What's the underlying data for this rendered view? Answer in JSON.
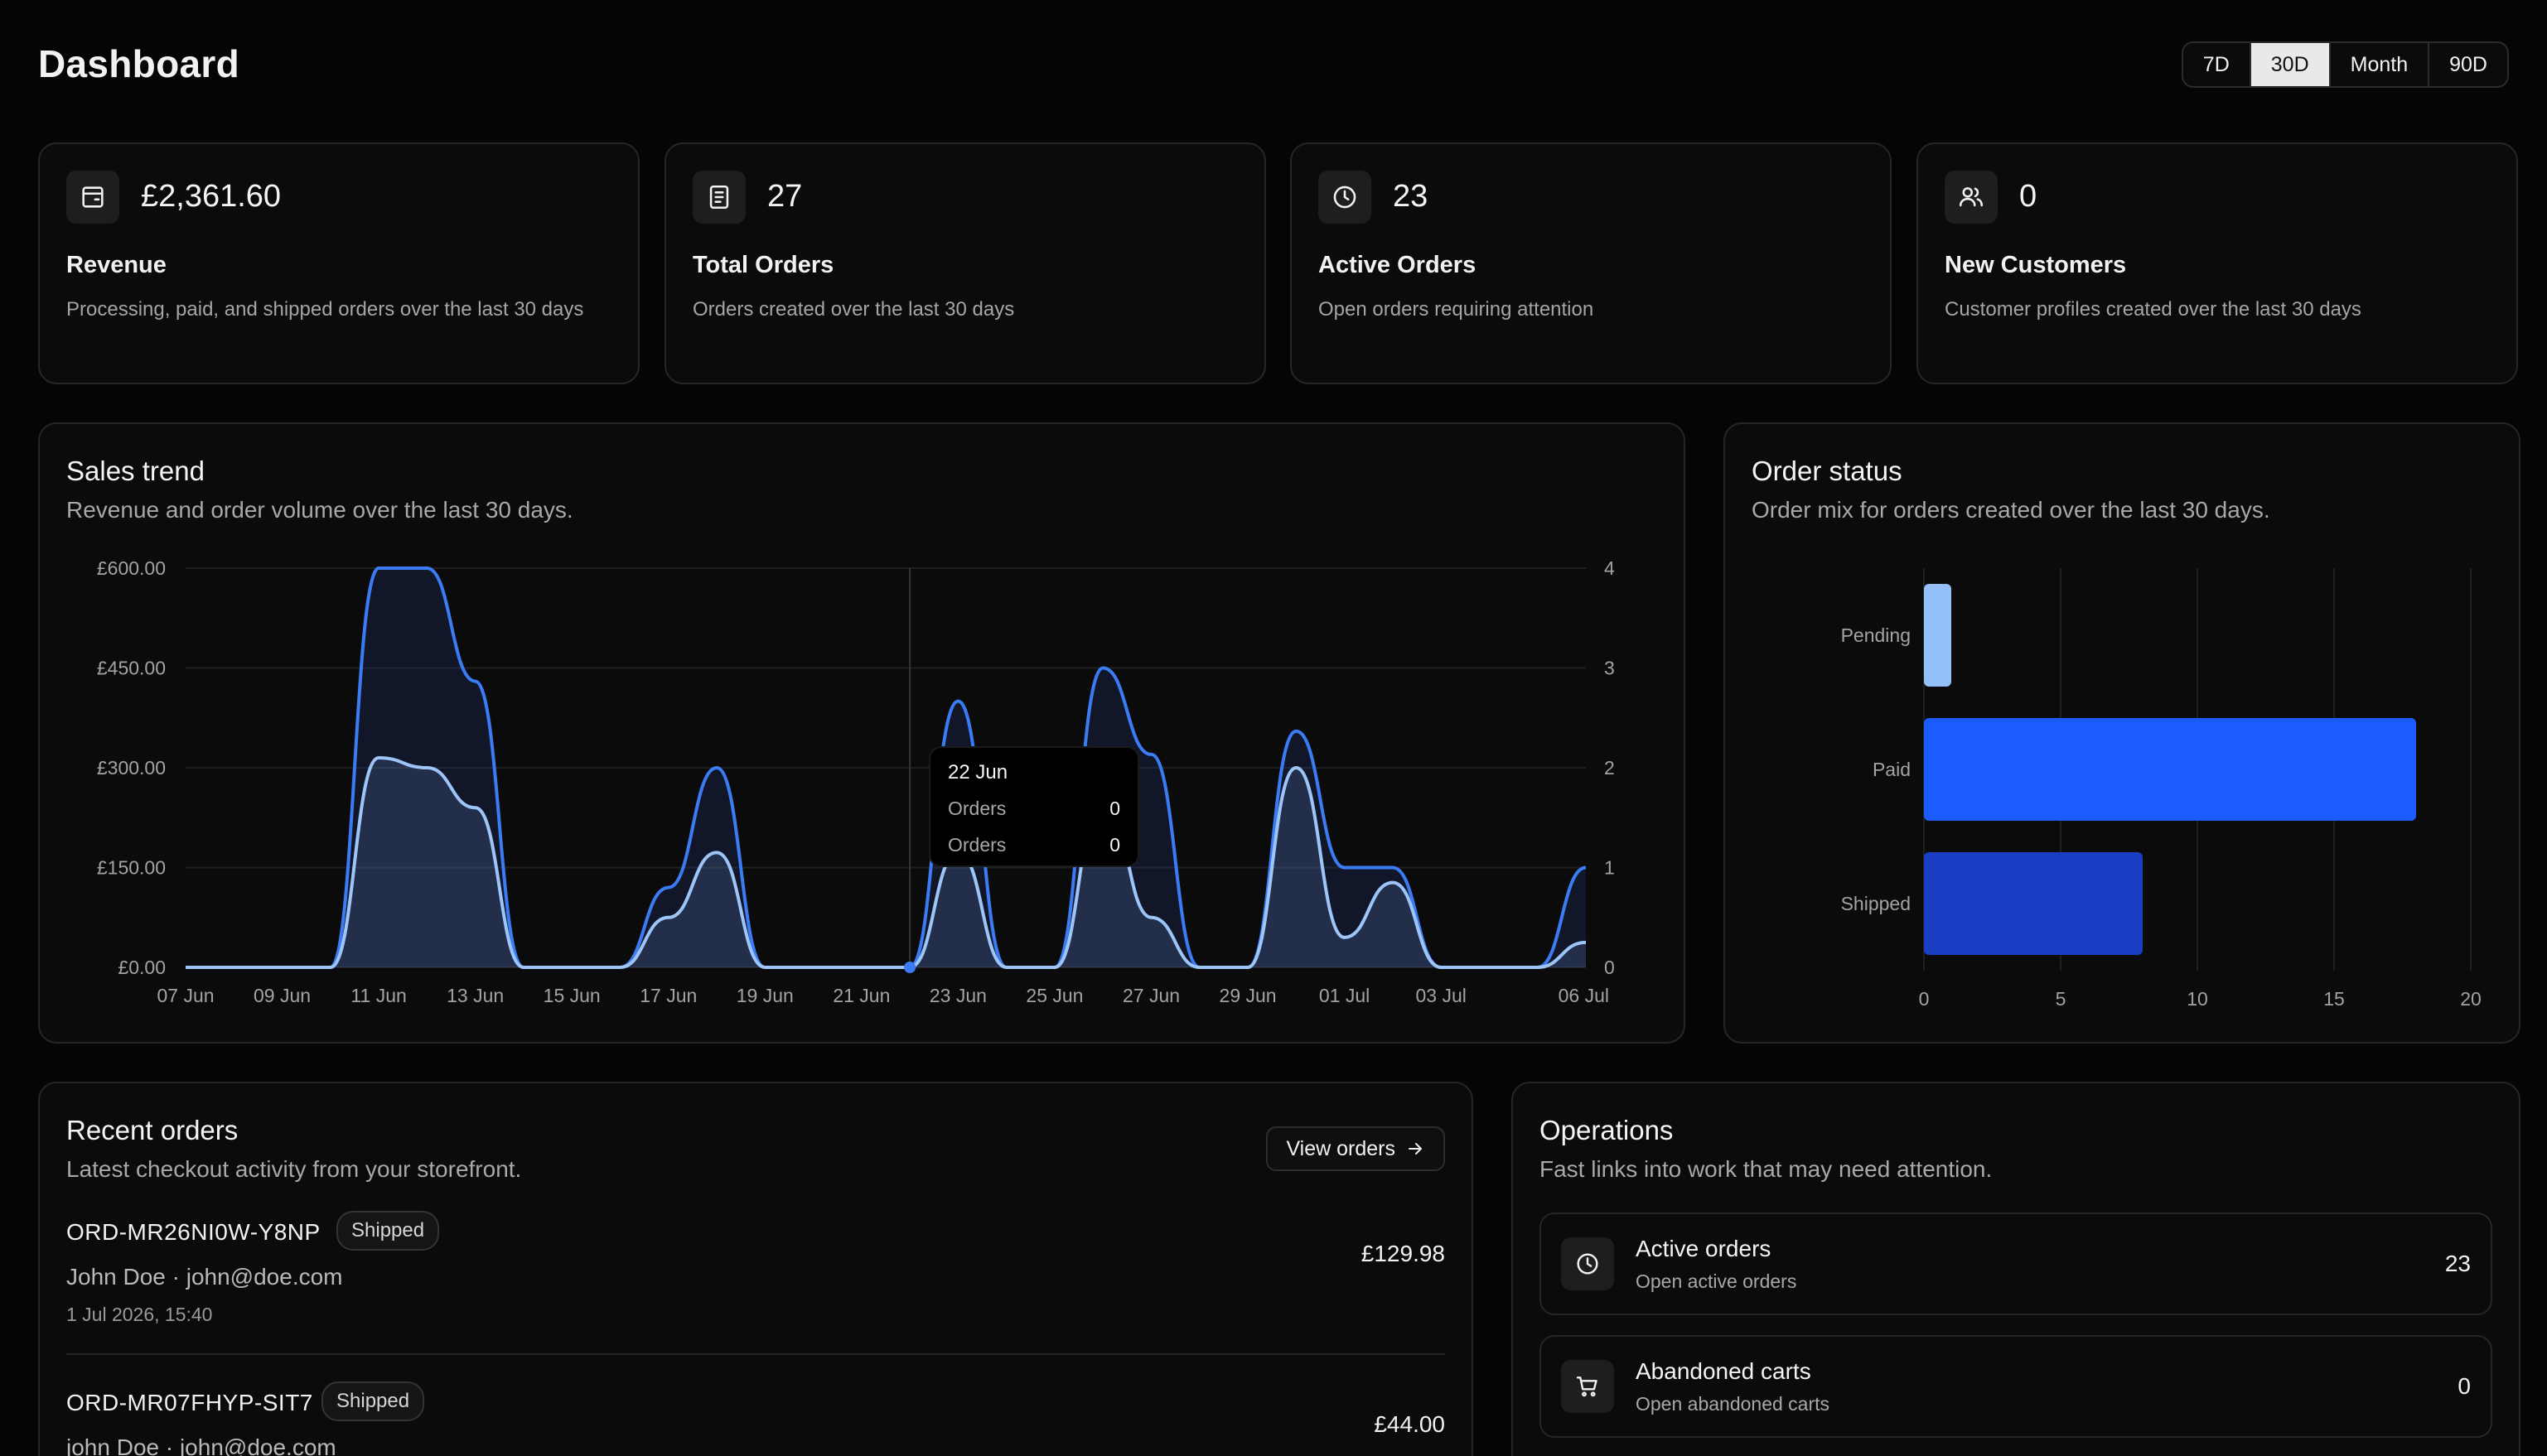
{
  "page": {
    "title": "Dashboard"
  },
  "range_options": [
    "7D",
    "30D",
    "Month",
    "90D"
  ],
  "range_selected": "30D",
  "stats": [
    {
      "icon": "wallet-icon",
      "value": "£2,361.60",
      "label": "Revenue",
      "desc": "Processing, paid, and shipped orders over the last 30 days"
    },
    {
      "icon": "receipt-icon",
      "value": "27",
      "label": "Total Orders",
      "desc": "Orders created over the last 30 days"
    },
    {
      "icon": "clock-icon",
      "value": "23",
      "label": "Active Orders",
      "desc": "Open orders requiring attention"
    },
    {
      "icon": "users-icon",
      "value": "0",
      "label": "New Customers",
      "desc": "Customer profiles created over the last 30 days"
    }
  ],
  "sales_trend": {
    "title": "Sales trend",
    "subtitle": "Revenue and order volume over the last 30 days.",
    "tooltip": {
      "date": "22 Jun",
      "rows": [
        {
          "label": "Orders",
          "value": "0"
        },
        {
          "label": "Orders",
          "value": "0"
        }
      ]
    }
  },
  "order_status": {
    "title": "Order status",
    "subtitle": "Order mix for orders created over the last 30 days."
  },
  "chart_data": [
    {
      "type": "area",
      "x_ticks": [
        "07 Jun",
        "09 Jun",
        "11 Jun",
        "13 Jun",
        "15 Jun",
        "17 Jun",
        "19 Jun",
        "21 Jun",
        "23 Jun",
        "25 Jun",
        "27 Jun",
        "29 Jun",
        "01 Jul",
        "03 Jul",
        "06 Jul"
      ],
      "y_left_ticks": [
        "£0.00",
        "£150.00",
        "£300.00",
        "£450.00",
        "£600.00"
      ],
      "y_left_lim": [
        0,
        600
      ],
      "y_right_ticks": [
        "0",
        "1",
        "2",
        "3",
        "4"
      ],
      "y_right_lim": [
        0,
        4
      ],
      "x": [
        "07 Jun",
        "08 Jun",
        "09 Jun",
        "10 Jun",
        "11 Jun",
        "12 Jun",
        "13 Jun",
        "14 Jun",
        "15 Jun",
        "16 Jun",
        "17 Jun",
        "18 Jun",
        "19 Jun",
        "20 Jun",
        "21 Jun",
        "22 Jun",
        "23 Jun",
        "24 Jun",
        "25 Jun",
        "26 Jun",
        "27 Jun",
        "28 Jun",
        "29 Jun",
        "30 Jun",
        "01 Jul",
        "02 Jul",
        "03 Jul",
        "04 Jul",
        "05 Jul",
        "06 Jul"
      ],
      "series": [
        {
          "axis": "left",
          "color": "#3b7cf5",
          "values": [
            0,
            0,
            0,
            0,
            600,
            600,
            430,
            0,
            0,
            0,
            120,
            300,
            0,
            0,
            0,
            0,
            400,
            0,
            0,
            450,
            320,
            0,
            0,
            355,
            150,
            150,
            0,
            0,
            0,
            150
          ]
        },
        {
          "axis": "right",
          "color": "#9dc5f8",
          "values": [
            0,
            0,
            0,
            0,
            2.1,
            2.0,
            1.6,
            0,
            0,
            0,
            0.5,
            1.15,
            0,
            0,
            0,
            0,
            1.15,
            0,
            0,
            1.7,
            0.5,
            0,
            0,
            2.0,
            0.3,
            0.85,
            0,
            0,
            0,
            0.25
          ]
        }
      ],
      "highlight": "22 Jun"
    },
    {
      "type": "bar",
      "orientation": "horizontal",
      "categories": [
        "Pending",
        "Paid",
        "Shipped"
      ],
      "values": [
        1,
        18,
        8
      ],
      "colors": [
        "#93c0f9",
        "#1a5cff",
        "#1a3fc4"
      ],
      "x_ticks": [
        "0",
        "5",
        "10",
        "15",
        "20"
      ],
      "xlim": [
        0,
        20
      ]
    }
  ],
  "recent_orders": {
    "title": "Recent orders",
    "subtitle": "Latest checkout activity from your storefront.",
    "view_label": "View orders",
    "orders": [
      {
        "id": "ORD-MR26NI0W-Y8NP",
        "status": "Shipped",
        "customer": "John Doe · john@doe.com",
        "time": "1 Jul 2026, 15:40",
        "amount": "£129.98"
      },
      {
        "id": "ORD-MR07FHYP-SIT7",
        "status": "Shipped",
        "customer": "john Doe · john@doe.com",
        "time": "",
        "amount": "£44.00"
      }
    ]
  },
  "operations": {
    "title": "Operations",
    "subtitle": "Fast links into work that may need attention.",
    "items": [
      {
        "icon": "clock-icon",
        "title": "Active orders",
        "sub": "Open active orders",
        "count": "23"
      },
      {
        "icon": "cart-icon",
        "title": "Abandoned carts",
        "sub": "Open abandoned carts",
        "count": "0"
      }
    ]
  }
}
